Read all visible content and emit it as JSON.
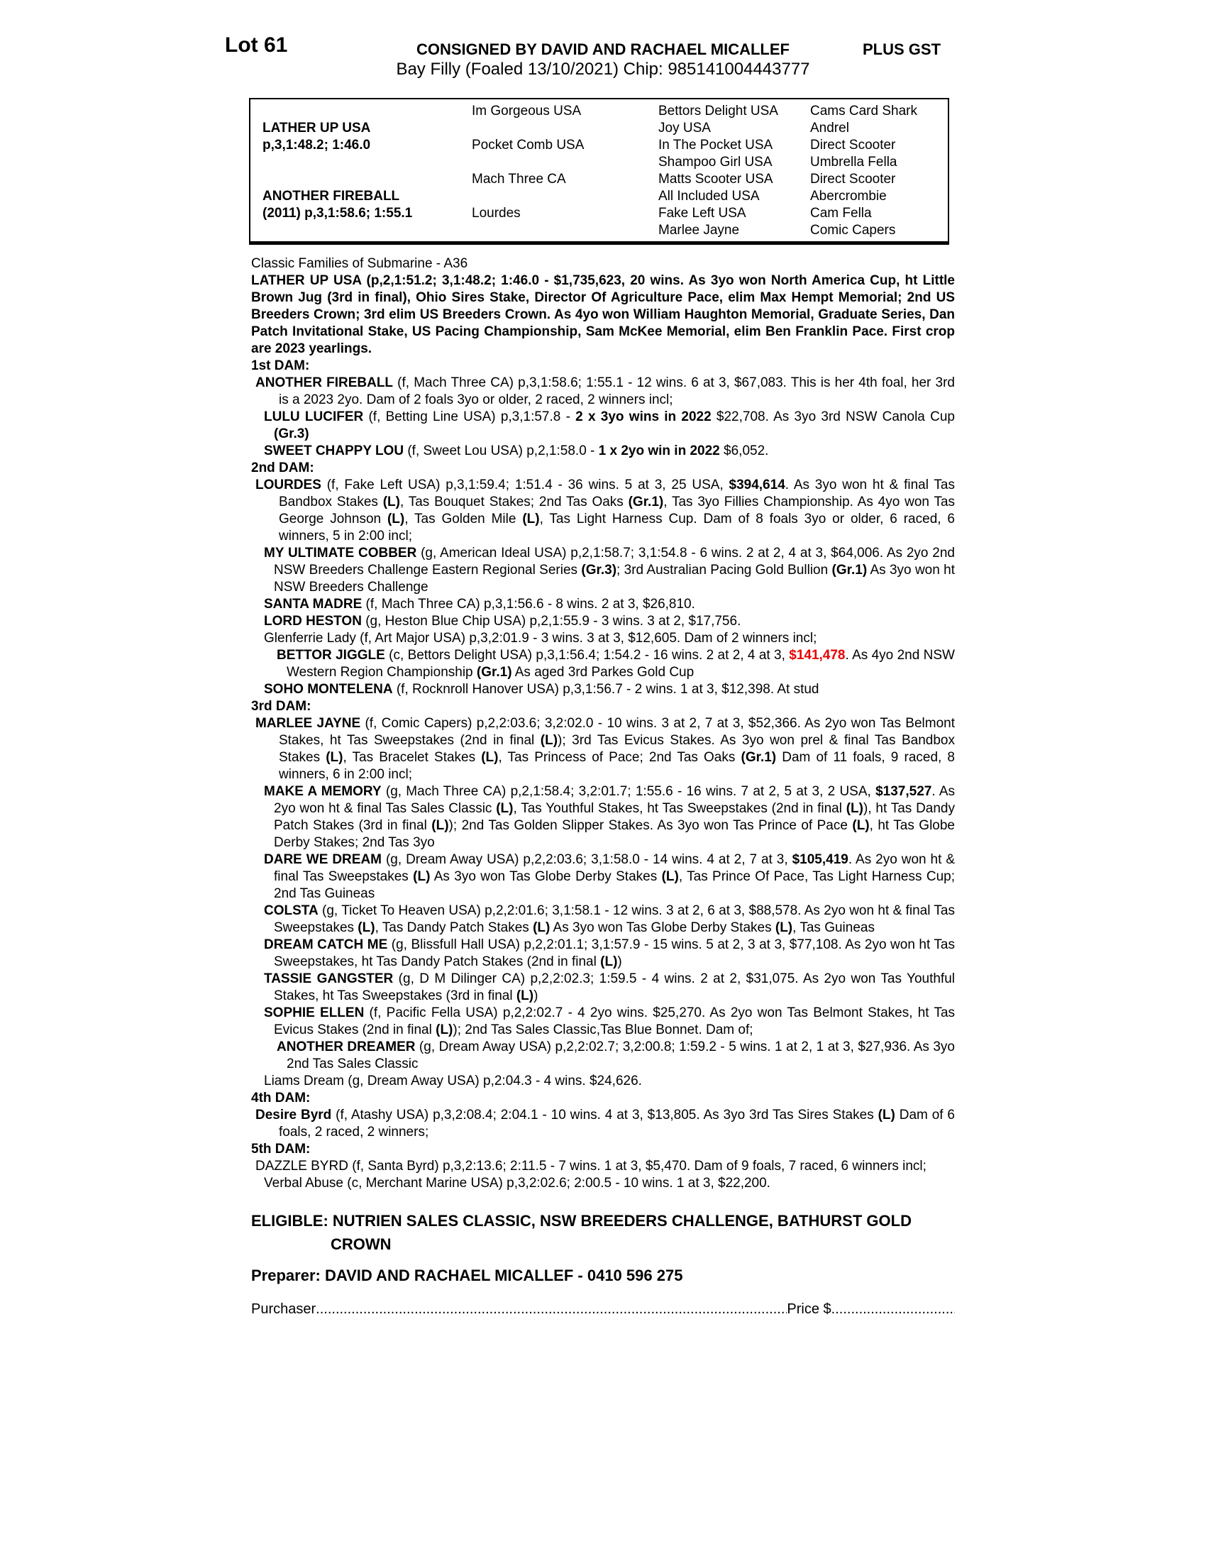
{
  "header": {
    "lot": "Lot 61",
    "consigned": "CONSIGNED BY DAVID AND RACHAEL MICALLEF",
    "plus_gst": "PLUS GST",
    "foal_line": "Bay Filly (Foaled 13/10/2021) Chip: 985141004443777"
  },
  "pedigree_table": {
    "rows": [
      [
        "",
        "Im Gorgeous USA",
        "Bettors Delight USA",
        "Cams Card Shark"
      ],
      [
        "LATHER UP USA",
        "",
        "Joy USA",
        "Andrel"
      ],
      [
        "p,3,1:48.2; 1:46.0",
        "Pocket Comb USA",
        "In The Pocket USA",
        "Direct Scooter"
      ],
      [
        "",
        "",
        "Shampoo Girl USA",
        "Umbrella Fella"
      ],
      [
        "",
        "Mach Three CA",
        "Matts Scooter USA",
        "Direct Scooter"
      ],
      [
        "ANOTHER FIREBALL",
        "",
        "All Included USA",
        "Abercrombie"
      ],
      [
        "(2011) p,3,1:58.6; 1:55.1",
        "Lourdes",
        "Fake Left USA",
        "Cam Fella"
      ],
      [
        "",
        "",
        "Marlee Jayne",
        "Comic Capers"
      ]
    ]
  },
  "body": {
    "blocks": [
      {
        "name": "classic-families-line",
        "style": "classic",
        "runs": [
          {
            "t": "Classic Families of Submarine - A36"
          }
        ]
      },
      {
        "name": "sire-summary-paragraph",
        "style": "para",
        "runs": [
          {
            "t": "LATHER UP USA (p,2,1:51.2; 3,1:48.2; 1:46.0 - $1,735,623, 20 wins. As 3yo won North America Cup, ht Little Brown Jug (3rd in final), Ohio Sires Stake, Director Of Agriculture Pace, elim Max Hempt Memorial; 2nd US Breeders Crown; 3rd elim US Breeders Crown. As 4yo won William Haughton Memorial, Graduate Series, Dan Patch Invitational Stake, US Pacing Championship, Sam McKee Memorial, elim Ben Franklin Pace. First crop are 2023 yearlings.",
            "b": 1
          }
        ]
      },
      {
        "name": "section-heading-1st-dam",
        "style": "head",
        "runs": [
          {
            "t": "1st DAM:"
          }
        ]
      },
      {
        "name": "dam-entry",
        "style": "lvl1",
        "runs": [
          {
            "t": "ANOTHER FIREBALL",
            "b": 1
          },
          {
            "t": " (f, Mach Three CA) p,3,1:58.6; 1:55.1 - 12 wins. 6 at 3, $67,083. This is her 4th foal, her 3rd is a 2023 2yo. Dam of 2 foals 3yo or older, 2 raced, 2 winners incl;"
          }
        ]
      },
      {
        "name": "dam-entry",
        "style": "lvl2",
        "runs": [
          {
            "t": "LULU LUCIFER",
            "b": 1
          },
          {
            "t": " (f, Betting Line USA) p,3,1:57.8 - "
          },
          {
            "t": "2 x 3yo wins in 2022",
            "b": 1
          },
          {
            "t": " $22,708. As 3yo 3rd NSW Canola Cup "
          },
          {
            "t": "(Gr.3)",
            "b": 1
          }
        ]
      },
      {
        "name": "dam-entry",
        "style": "lvl2",
        "runs": [
          {
            "t": "SWEET CHAPPY LOU",
            "b": 1
          },
          {
            "t": " (f, Sweet Lou USA) p,2,1:58.0 - "
          },
          {
            "t": "1 x 2yo win in 2022",
            "b": 1
          },
          {
            "t": " $6,052."
          }
        ]
      },
      {
        "name": "section-heading-2nd-dam",
        "style": "head",
        "runs": [
          {
            "t": "2nd DAM:"
          }
        ]
      },
      {
        "name": "dam-entry",
        "style": "lvl1",
        "runs": [
          {
            "t": "LOURDES",
            "b": 1
          },
          {
            "t": " (f, Fake Left USA) p,3,1:59.4; 1:51.4 - 36 wins. 5 at 3, 25 USA, "
          },
          {
            "t": "$394,614",
            "b": 1
          },
          {
            "t": ". As 3yo won ht & final Tas Bandbox Stakes "
          },
          {
            "t": "(L)",
            "b": 1
          },
          {
            "t": ", Tas Bouquet Stakes; 2nd Tas Oaks "
          },
          {
            "t": "(Gr.1)",
            "b": 1
          },
          {
            "t": ", Tas 3yo Fillies Championship. As 4yo won Tas George Johnson "
          },
          {
            "t": "(L)",
            "b": 1
          },
          {
            "t": ", Tas Golden Mile "
          },
          {
            "t": "(L)",
            "b": 1
          },
          {
            "t": ", Tas Light Harness Cup. Dam of 8 foals 3yo or older, 6 raced, 6 winners, 5 in 2:00 incl;"
          }
        ]
      },
      {
        "name": "dam-entry",
        "style": "lvl2",
        "runs": [
          {
            "t": "MY ULTIMATE COBBER",
            "b": 1
          },
          {
            "t": " (g, American Ideal USA) p,2,1:58.7; 3,1:54.8 - 6 wins. 2 at 2, 4 at 3, $64,006. As 2yo 2nd NSW Breeders Challenge Eastern Regional Series "
          },
          {
            "t": "(Gr.3)",
            "b": 1
          },
          {
            "t": "; 3rd Australian Pacing Gold Bullion "
          },
          {
            "t": "(Gr.1)",
            "b": 1
          },
          {
            "t": " As 3yo won ht NSW Breeders Challenge"
          }
        ]
      },
      {
        "name": "dam-entry",
        "style": "lvl2",
        "runs": [
          {
            "t": "SANTA MADRE",
            "b": 1
          },
          {
            "t": " (f, Mach Three CA) p,3,1:56.6 - 8 wins. 2 at 3, $26,810."
          }
        ]
      },
      {
        "name": "dam-entry",
        "style": "lvl2",
        "runs": [
          {
            "t": "LORD HESTON",
            "b": 1
          },
          {
            "t": " (g, Heston Blue Chip USA) p,2,1:55.9 - 3 wins. 3 at 2, $17,756."
          }
        ]
      },
      {
        "name": "dam-entry",
        "style": "lvl2",
        "runs": [
          {
            "t": "Glenferrie Lady (f, Art Major USA) p,3,2:01.9 - 3 wins. 3 at 3, $12,605. Dam of 2 winners incl;"
          }
        ]
      },
      {
        "name": "dam-entry",
        "style": "lvl3",
        "runs": [
          {
            "t": "BETTOR JIGGLE",
            "b": 1
          },
          {
            "t": " (c, Bettors Delight USA) p,3,1:56.4; 1:54.2 - 16 wins. 2 at 2, 4 at 3, "
          },
          {
            "t": "$141,478",
            "b": 1,
            "r": 1
          },
          {
            "t": ". As 4yo 2nd NSW Western Region Championship "
          },
          {
            "t": "(Gr.1)",
            "b": 1
          },
          {
            "t": " As aged 3rd Parkes Gold Cup"
          }
        ]
      },
      {
        "name": "dam-entry",
        "style": "lvl2",
        "runs": [
          {
            "t": "SOHO MONTELENA",
            "b": 1
          },
          {
            "t": " (f, Rocknroll Hanover USA) p,3,1:56.7 - 2 wins. 1 at 3, $12,398. At stud"
          }
        ]
      },
      {
        "name": "section-heading-3rd-dam",
        "style": "head",
        "runs": [
          {
            "t": "3rd DAM:"
          }
        ]
      },
      {
        "name": "dam-entry",
        "style": "lvl1",
        "runs": [
          {
            "t": "MARLEE JAYNE",
            "b": 1
          },
          {
            "t": " (f, Comic Capers) p,2,2:03.6; 3,2:02.0 - 10 wins. 3 at 2, 7 at 3, $52,366. As 2yo won Tas Belmont Stakes, ht Tas Sweepstakes (2nd in final "
          },
          {
            "t": "(L)",
            "b": 1
          },
          {
            "t": "); 3rd Tas Evicus Stakes. As 3yo won prel & final Tas Bandbox Stakes "
          },
          {
            "t": "(L)",
            "b": 1
          },
          {
            "t": ", Tas Bracelet Stakes "
          },
          {
            "t": "(L)",
            "b": 1
          },
          {
            "t": ", Tas Princess of Pace; 2nd Tas Oaks "
          },
          {
            "t": "(Gr.1)",
            "b": 1
          },
          {
            "t": " Dam of 11 foals, 9 raced, 8 winners, 6 in 2:00 incl;"
          }
        ]
      },
      {
        "name": "dam-entry",
        "style": "lvl2",
        "runs": [
          {
            "t": "MAKE A MEMORY",
            "b": 1
          },
          {
            "t": " (g, Mach Three CA) p,2,1:58.4; 3,2:01.7; 1:55.6 - 16 wins. 7 at 2, 5 at 3, 2 USA, "
          },
          {
            "t": "$137,527",
            "b": 1
          },
          {
            "t": ". As 2yo won ht & final Tas Sales Classic "
          },
          {
            "t": "(L)",
            "b": 1
          },
          {
            "t": ", Tas Youthful Stakes, ht Tas Sweepstakes (2nd in final "
          },
          {
            "t": "(L)",
            "b": 1
          },
          {
            "t": "), ht Tas Dandy Patch Stakes (3rd in final "
          },
          {
            "t": "(L)",
            "b": 1
          },
          {
            "t": "); 2nd Tas Golden Slipper Stakes. As 3yo won Tas Prince of Pace "
          },
          {
            "t": "(L)",
            "b": 1
          },
          {
            "t": ", ht Tas Globe Derby Stakes; 2nd Tas 3yo"
          }
        ]
      },
      {
        "name": "dam-entry",
        "style": "lvl2",
        "runs": [
          {
            "t": "DARE WE DREAM",
            "b": 1
          },
          {
            "t": " (g, Dream Away USA) p,2,2:03.6; 3,1:58.0 - 14 wins. 4 at 2, 7 at 3, "
          },
          {
            "t": "$105,419",
            "b": 1
          },
          {
            "t": ". As 2yo won ht & final Tas Sweepstakes "
          },
          {
            "t": "(L)",
            "b": 1
          },
          {
            "t": " As 3yo won Tas Globe Derby Stakes "
          },
          {
            "t": "(L)",
            "b": 1
          },
          {
            "t": ", Tas Prince Of Pace, Tas Light Harness Cup; 2nd Tas Guineas"
          }
        ]
      },
      {
        "name": "dam-entry",
        "style": "lvl2",
        "runs": [
          {
            "t": "COLSTA",
            "b": 1
          },
          {
            "t": " (g, Ticket To Heaven USA) p,2,2:01.6; 3,1:58.1 - 12 wins. 3 at 2, 6 at 3, $88,578. As 2yo won ht & final Tas Sweepstakes "
          },
          {
            "t": "(L)",
            "b": 1
          },
          {
            "t": ", Tas Dandy Patch Stakes "
          },
          {
            "t": "(L)",
            "b": 1
          },
          {
            "t": " As 3yo won Tas Globe Derby Stakes "
          },
          {
            "t": "(L)",
            "b": 1
          },
          {
            "t": ", Tas Guineas"
          }
        ]
      },
      {
        "name": "dam-entry",
        "style": "lvl2",
        "runs": [
          {
            "t": "DREAM CATCH ME",
            "b": 1
          },
          {
            "t": " (g, Blissfull Hall USA) p,2,2:01.1; 3,1:57.9 - 15 wins. 5 at 2, 3 at 3, $77,108. As 2yo won ht Tas Sweepstakes, ht Tas Dandy Patch Stakes (2nd in final "
          },
          {
            "t": "(L)",
            "b": 1
          },
          {
            "t": ")"
          }
        ]
      },
      {
        "name": "dam-entry",
        "style": "lvl2",
        "runs": [
          {
            "t": "TASSIE GANGSTER",
            "b": 1
          },
          {
            "t": " (g, D M Dilinger CA) p,2,2:02.3; 1:59.5 - 4 wins. 2 at 2, $31,075. As 2yo won Tas Youthful Stakes, ht Tas Sweepstakes (3rd in final "
          },
          {
            "t": "(L)",
            "b": 1
          },
          {
            "t": ")"
          }
        ]
      },
      {
        "name": "dam-entry",
        "style": "lvl2",
        "runs": [
          {
            "t": "SOPHIE ELLEN",
            "b": 1
          },
          {
            "t": " (f, Pacific Fella USA) p,2,2:02.7 - 4 2yo wins. $25,270. As 2yo won Tas Belmont Stakes, ht Tas Evicus Stakes (2nd in final "
          },
          {
            "t": "(L)",
            "b": 1
          },
          {
            "t": "); 2nd Tas Sales Classic,Tas Blue Bonnet. Dam of;"
          }
        ]
      },
      {
        "name": "dam-entry",
        "style": "lvl3",
        "runs": [
          {
            "t": "ANOTHER DREAMER",
            "b": 1
          },
          {
            "t": " (g, Dream Away USA) p,2,2:02.7; 3,2:00.8; 1:59.2 - 5 wins. 1 at 2, 1 at 3, $27,936. As 3yo 2nd Tas Sales Classic"
          }
        ]
      },
      {
        "name": "dam-entry",
        "style": "lvl2",
        "runs": [
          {
            "t": "Liams Dream (g, Dream Away USA) p,2:04.3 - 4 wins. $24,626."
          }
        ]
      },
      {
        "name": "section-heading-4th-dam",
        "style": "head",
        "runs": [
          {
            "t": "4th DAM:"
          }
        ]
      },
      {
        "name": "dam-entry",
        "style": "lvl1",
        "runs": [
          {
            "t": "Desire Byrd",
            "b": 1
          },
          {
            "t": " (f, Atashy USA) p,3,2:08.4; 2:04.1 - 10 wins. 4 at 3, $13,805. As 3yo 3rd Tas Sires Stakes "
          },
          {
            "t": "(L)",
            "b": 1
          },
          {
            "t": " Dam of 6 foals, 2 raced, 2 winners;"
          }
        ]
      },
      {
        "name": "section-heading-5th-dam",
        "style": "head",
        "runs": [
          {
            "t": "5th DAM:"
          }
        ]
      },
      {
        "name": "dam-entry",
        "style": "lvl1",
        "runs": [
          {
            "t": "DAZZLE BYRD (f, Santa Byrd) p,3,2:13.6; 2:11.5 - 7 wins. 1 at 3, $5,470. Dam of 9 foals, 7 raced, 6 winners incl;"
          }
        ]
      },
      {
        "name": "dam-entry",
        "style": "lvl2",
        "runs": [
          {
            "t": "Verbal Abuse (c, Merchant Marine USA) p,3,2:02.6; 2:00.5 - 10 wins. 1 at 3, $22,200."
          }
        ]
      },
      {
        "name": "eligible-note",
        "style": "eligible",
        "runs": [
          {
            "t": "ELIGIBLE: NUTRIEN SALES CLASSIC, NSW BREEDERS CHALLENGE, BATHURST GOLD CROWN"
          }
        ]
      },
      {
        "name": "preparer-line",
        "style": "preparer",
        "runs": [
          {
            "t": "Preparer: DAVID AND RACHAEL MICALLEF - 0410 596 275"
          }
        ]
      }
    ]
  },
  "footer": {
    "purchaser_label": "Purchaser",
    "leader_dots": "................................................................................................................................................",
    "price_label": "Price $",
    "price_dots": "............................................................"
  }
}
